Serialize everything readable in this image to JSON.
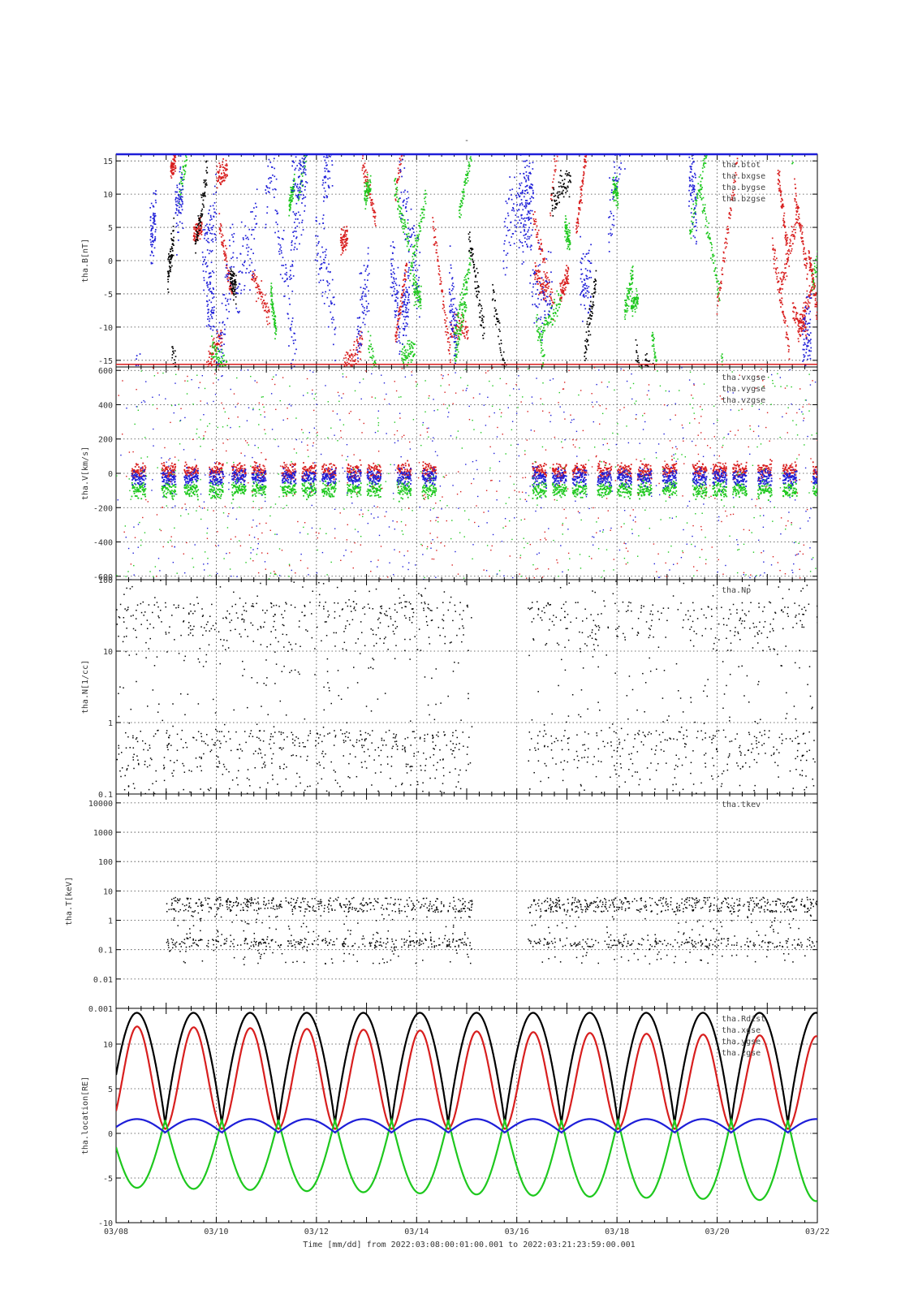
{
  "figure": {
    "top_mark": "-",
    "xlabel": "Time [mm/dd]  from 2022:03:08:00:01:00.001  to  2022:03:21:23:59:00.001",
    "x_ticks": [
      "03/08",
      "03/10",
      "03/12",
      "03/14",
      "03/16",
      "03/18",
      "03/20",
      "03/22"
    ]
  },
  "chart_data": [
    {
      "type": "scatter",
      "id": "B",
      "ylabel": "tha.B[nT]",
      "yscale": "linear",
      "ylim": [
        -16,
        16
      ],
      "yticks": [
        -15,
        -10,
        -5,
        0,
        5,
        10,
        15
      ],
      "ytick_labels": [
        "-15",
        "-10",
        "-5",
        "0",
        "5",
        "10",
        "15"
      ],
      "xlim_days": [
        0,
        14
      ],
      "grid": true,
      "legend_position": "top-right",
      "series": [
        {
          "name": "tha.btot",
          "color": "#ffffff"
        },
        {
          "name": "tha.bxgse",
          "color": "#d81e1e"
        },
        {
          "name": "tha.bygse",
          "color": "#1ec81e"
        },
        {
          "name": "tha.bzgse",
          "color": "#1e1ed8"
        },
        {
          "name": "",
          "color": "#000000"
        }
      ]
    },
    {
      "type": "scatter",
      "id": "V",
      "ylabel": "tha.V[km/s]",
      "yscale": "linear",
      "ylim": [
        -620,
        620
      ],
      "yticks": [
        -600,
        -400,
        -200,
        0,
        200,
        400,
        600
      ],
      "ytick_labels": [
        "-600",
        "-400",
        "-200",
        "0",
        "200",
        "400",
        "600"
      ],
      "xlim_days": [
        0,
        14
      ],
      "grid": true,
      "legend_position": "top-right",
      "series": [
        {
          "name": "tha.vxgse",
          "color": "#d81e1e"
        },
        {
          "name": "tha.vygse",
          "color": "#1ec81e"
        },
        {
          "name": "tha.vzgse",
          "color": "#1e1ed8"
        }
      ]
    },
    {
      "type": "scatter",
      "id": "N",
      "ylabel": "tha.N[1/cc]",
      "yscale": "log",
      "ylim": [
        0.1,
        100
      ],
      "yticks": [
        0.1,
        1,
        10,
        100
      ],
      "ytick_labels": [
        "0.1",
        "1",
        "10",
        "100"
      ],
      "xlim_days": [
        0,
        14
      ],
      "grid": true,
      "legend_position": "top-right",
      "series": [
        {
          "name": "tha.Np",
          "color": "#000000"
        }
      ]
    },
    {
      "type": "scatter",
      "id": "T",
      "ylabel": "tha.T[keV]",
      "yscale": "log",
      "ylim": [
        0.001,
        20000
      ],
      "yticks": [
        0.001,
        0.01,
        0.1,
        1,
        10,
        100,
        1000,
        10000
      ],
      "ytick_labels": [
        "0.001",
        "0.01",
        "0.1",
        "1",
        "10",
        "100",
        "1000",
        "10000"
      ],
      "xlim_days": [
        0,
        14
      ],
      "grid": true,
      "legend_position": "top-right",
      "series": [
        {
          "name": "tha.tkev",
          "color": "#000000"
        }
      ]
    },
    {
      "type": "line",
      "id": "location",
      "ylabel": "tha.location[RE]",
      "yscale": "linear",
      "ylim": [
        -10,
        14
      ],
      "yticks": [
        -10,
        -5,
        0,
        5,
        10
      ],
      "ytick_labels": [
        "-10",
        "-5",
        "0",
        "5",
        "10"
      ],
      "xlim_days": [
        0,
        14
      ],
      "grid": true,
      "legend_position": "top-right",
      "orbit_period_days": 1.13,
      "series": [
        {
          "name": "tha.Rdist",
          "color": "#000000"
        },
        {
          "name": "tha.xgse",
          "color": "#d81e1e"
        },
        {
          "name": "tha.ygse",
          "color": "#1ec81e"
        },
        {
          "name": "tha.zgse",
          "color": "#1e1ed8"
        }
      ]
    }
  ]
}
